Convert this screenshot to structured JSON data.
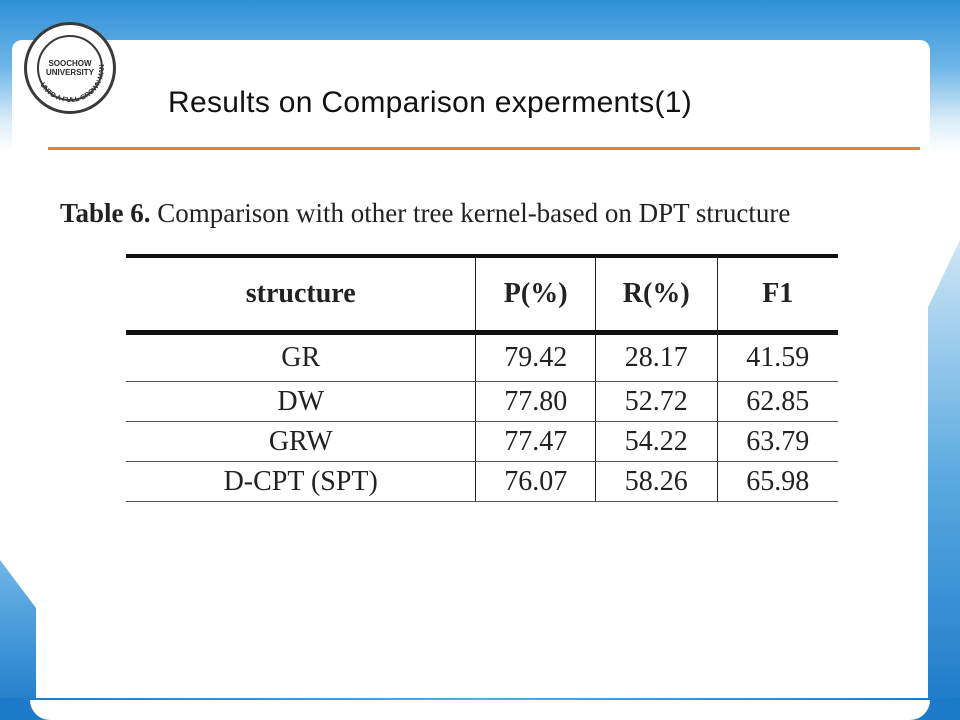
{
  "slide": {
    "title": "Results on Comparison experments(1)",
    "logo": {
      "ring_text": "UNTO A FULL GROWN MAN",
      "center_text": "SOOCHOW UNIVERSITY"
    }
  },
  "table": {
    "caption_label": "Table 6.",
    "caption_text": " Comparison with other tree kernel-based on DPT structure",
    "headers": [
      "structure",
      "P(%)",
      "R(%)",
      "F1"
    ],
    "rows": [
      [
        "GR",
        "79.42",
        "28.17",
        "41.59"
      ],
      [
        "DW",
        "77.80",
        "52.72",
        "62.85"
      ],
      [
        "GRW",
        "77.47",
        "54.22",
        "63.79"
      ],
      [
        "D-CPT (SPT)",
        "76.07",
        "58.26",
        "65.98"
      ]
    ]
  },
  "colors": {
    "accent_rule": "#e8802e",
    "theme_blue": "#1a78c8"
  }
}
